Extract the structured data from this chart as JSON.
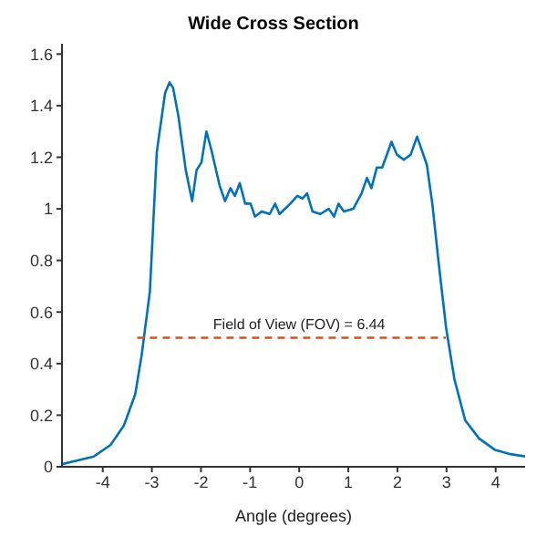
{
  "chart_data": {
    "type": "line",
    "title": "Wide Cross Section",
    "xlabel": "Angle (degrees)",
    "xlim": [
      -4.83,
      4.6
    ],
    "xticks": [
      -4,
      -3,
      -2,
      -1,
      0,
      1,
      2,
      3,
      4
    ],
    "ylim": [
      0,
      1.64
    ],
    "yticks": [
      0,
      0.2,
      0.4,
      0.6,
      0.8,
      1,
      1.2,
      1.4,
      1.6
    ],
    "series": [
      {
        "color": "#0072bd",
        "x": [
          -4.83,
          -4.18,
          -3.84,
          -3.57,
          -3.34,
          -3.21,
          -3.04,
          -2.9,
          -2.73,
          -2.64,
          -2.57,
          -2.46,
          -2.31,
          -2.18,
          -2.09,
          -1.99,
          -1.89,
          -1.79,
          -1.62,
          -1.51,
          -1.4,
          -1.31,
          -1.21,
          -1.1,
          -0.99,
          -0.9,
          -0.76,
          -0.6,
          -0.49,
          -0.4,
          -0.18,
          -0.04,
          0.07,
          0.16,
          0.27,
          0.43,
          0.6,
          0.71,
          0.8,
          0.91,
          1.1,
          1.27,
          1.38,
          1.47,
          1.58,
          1.69,
          1.88,
          1.99,
          2.13,
          2.27,
          2.4,
          2.51,
          2.6,
          2.71,
          2.84,
          2.99,
          3.16,
          3.38,
          3.66,
          3.99,
          4.27,
          4.6
        ],
        "values": [
          0.01,
          0.04,
          0.085,
          0.16,
          0.28,
          0.43,
          0.68,
          1.22,
          1.45,
          1.49,
          1.47,
          1.36,
          1.15,
          1.03,
          1.15,
          1.18,
          1.3,
          1.23,
          1.09,
          1.03,
          1.08,
          1.05,
          1.1,
          1.02,
          1.02,
          0.97,
          0.99,
          0.98,
          1.02,
          0.98,
          1.02,
          1.05,
          1.04,
          1.06,
          0.99,
          0.98,
          1.0,
          0.97,
          1.02,
          0.99,
          1.0,
          1.06,
          1.12,
          1.08,
          1.16,
          1.16,
          1.26,
          1.21,
          1.19,
          1.21,
          1.28,
          1.22,
          1.17,
          1.02,
          0.79,
          0.54,
          0.34,
          0.18,
          0.11,
          0.065,
          0.05,
          0.04
        ]
      },
      {
        "color": "#d95319",
        "line_style": "dashed",
        "x": [
          -3.3,
          2.99
        ],
        "values": [
          0.5,
          0.5
        ]
      }
    ],
    "annotations": [
      {
        "text": "Field of View (FOV) = 6.44",
        "x": 0,
        "y": 0.5
      }
    ],
    "grid": false,
    "legend": false,
    "marker": "none"
  }
}
